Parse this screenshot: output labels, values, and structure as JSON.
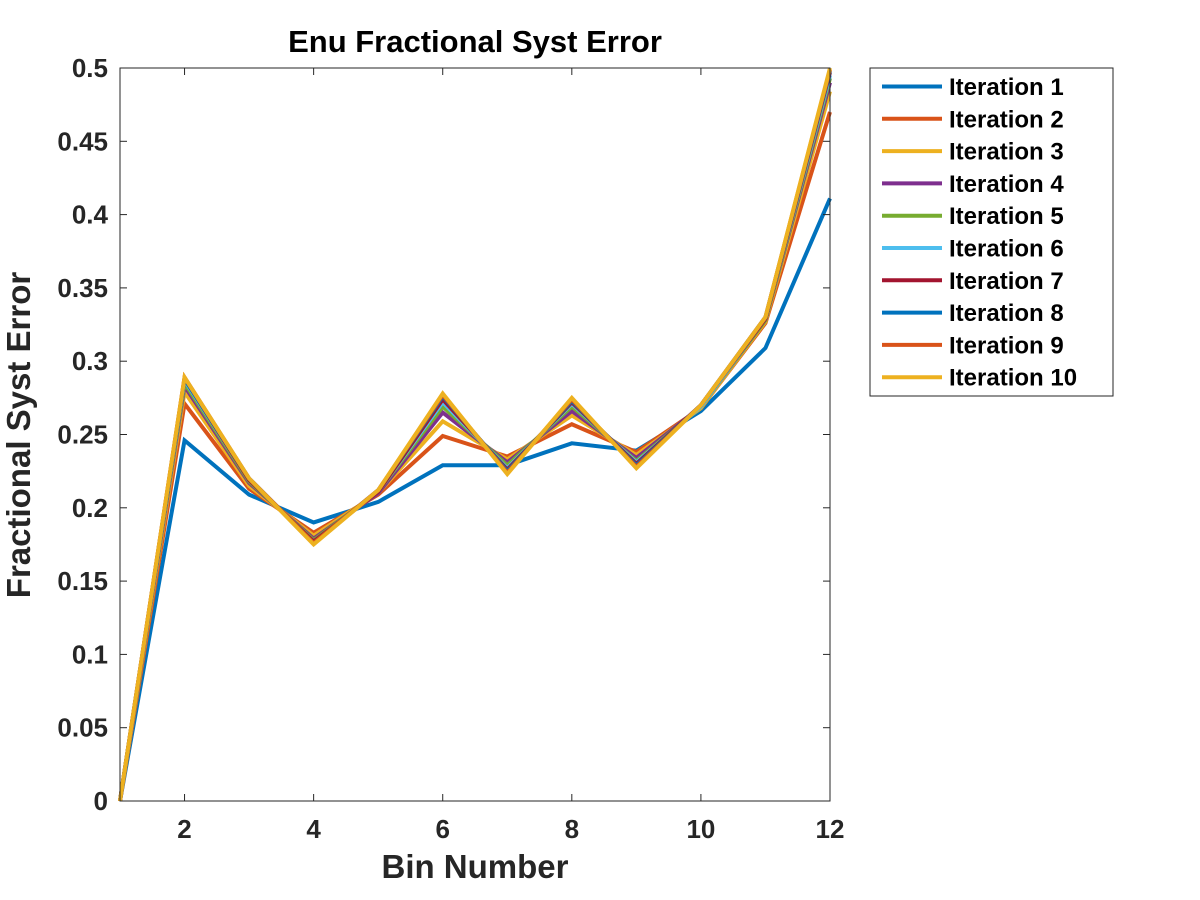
{
  "chart_data": {
    "type": "line",
    "title": "Enu Fractional Syst Error",
    "xlabel": "Bin Number",
    "ylabel": "Fractional Syst Error",
    "xlim": [
      1,
      12
    ],
    "ylim": [
      0,
      0.5
    ],
    "xticks": [
      2,
      4,
      6,
      8,
      10,
      12
    ],
    "xtick_labels": [
      "2",
      "4",
      "6",
      "8",
      "10",
      "12"
    ],
    "yticks": [
      0,
      0.05,
      0.1,
      0.15,
      0.2,
      0.25,
      0.3,
      0.35,
      0.4,
      0.45,
      0.5
    ],
    "ytick_labels": [
      "0",
      "0.05",
      "0.1",
      "0.15",
      "0.2",
      "0.25",
      "0.3",
      "0.35",
      "0.4",
      "0.45",
      "0.5"
    ],
    "grid": false,
    "legend_position": "outside-top-right",
    "x": [
      1,
      2,
      3,
      4,
      5,
      6,
      7,
      8,
      9,
      10,
      11,
      12
    ],
    "series": [
      {
        "name": "Iteration 1",
        "color": "#0072BD",
        "values": [
          0,
          0.246,
          0.209,
          0.19,
          0.204,
          0.229,
          0.229,
          0.244,
          0.239,
          0.266,
          0.309,
          0.411
        ]
      },
      {
        "name": "Iteration 2",
        "color": "#D95319",
        "values": [
          0,
          0.271,
          0.213,
          0.183,
          0.209,
          0.249,
          0.235,
          0.257,
          0.238,
          0.268,
          0.326,
          0.47
        ]
      },
      {
        "name": "Iteration 3",
        "color": "#EDB120",
        "values": [
          0,
          0.279,
          0.215,
          0.181,
          0.21,
          0.259,
          0.233,
          0.263,
          0.236,
          0.268,
          0.327,
          0.484
        ]
      },
      {
        "name": "Iteration 4",
        "color": "#7E2F8E",
        "values": [
          0,
          0.283,
          0.217,
          0.179,
          0.21,
          0.265,
          0.231,
          0.266,
          0.234,
          0.269,
          0.328,
          0.49
        ]
      },
      {
        "name": "Iteration 5",
        "color": "#77AC30",
        "values": [
          0,
          0.285,
          0.218,
          0.178,
          0.211,
          0.269,
          0.229,
          0.269,
          0.232,
          0.269,
          0.328,
          0.493
        ]
      },
      {
        "name": "Iteration 6",
        "color": "#4DBEEE",
        "values": [
          0,
          0.287,
          0.219,
          0.177,
          0.211,
          0.272,
          0.227,
          0.271,
          0.231,
          0.269,
          0.329,
          0.495
        ]
      },
      {
        "name": "Iteration 7",
        "color": "#A2142F",
        "values": [
          0,
          0.288,
          0.219,
          0.177,
          0.211,
          0.274,
          0.226,
          0.272,
          0.23,
          0.27,
          0.329,
          0.497
        ]
      },
      {
        "name": "Iteration 8",
        "color": "#0072BD",
        "values": [
          0,
          0.288,
          0.22,
          0.176,
          0.212,
          0.276,
          0.225,
          0.273,
          0.229,
          0.27,
          0.33,
          0.498
        ]
      },
      {
        "name": "Iteration 9",
        "color": "#D95319",
        "values": [
          0,
          0.289,
          0.22,
          0.176,
          0.212,
          0.277,
          0.224,
          0.274,
          0.228,
          0.27,
          0.33,
          0.499
        ]
      },
      {
        "name": "Iteration 10",
        "color": "#EDB120",
        "values": [
          0,
          0.289,
          0.22,
          0.175,
          0.212,
          0.278,
          0.223,
          0.275,
          0.227,
          0.27,
          0.33,
          0.5
        ]
      }
    ]
  }
}
